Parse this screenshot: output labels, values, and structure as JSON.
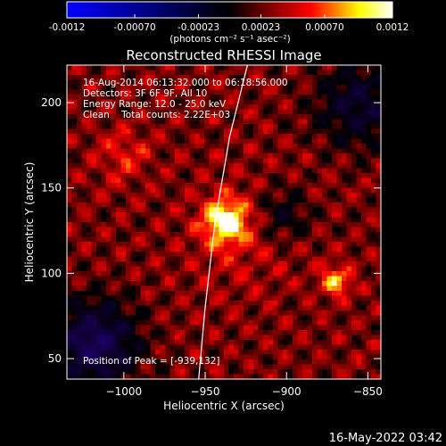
{
  "colorbar": {
    "ticks": [
      "-0.0012",
      "-0.00070",
      "-0.00023",
      "0.00023",
      "0.00070",
      "0.0012"
    ],
    "tick_values": [
      -0.0012,
      -0.0007,
      -0.00023,
      0.00023,
      0.0007,
      0.0012
    ],
    "range": [
      -0.0012,
      0.0012
    ],
    "unit_label": "(photons cm⁻² s⁻¹ asec⁻²)",
    "colors": [
      "#0000ff",
      "#000000",
      "#ff0000",
      "#ffff00",
      "#ffffff"
    ]
  },
  "chart_data": {
    "type": "heatmap",
    "title": "Reconstructed RHESSI Image",
    "xlabel": "Heliocentric X (arcsec)",
    "ylabel": "Heliocentric Y (arcsec)",
    "xlim": [
      -1035,
      -842
    ],
    "ylim": [
      38,
      222
    ],
    "x_ticks": [
      -1000,
      -950,
      -900,
      -850
    ],
    "x_tick_labels": [
      "−1000",
      "−950",
      "−900",
      "−850"
    ],
    "y_ticks": [
      50,
      100,
      150,
      200
    ],
    "y_tick_labels": [
      "50",
      "100",
      "150",
      "200"
    ],
    "annotations": {
      "time_range": "16-Aug-2014 06:13:32.000 to 06:18:56.000",
      "detectors": "Detectors: 3F 6F 9F, All 10",
      "energy": "Energy Range: 12.0 - 25.0 keV",
      "clean": "Clean    Total counts: 2.22E+03",
      "peak": "Position of Peak = [-939,132]"
    },
    "peak_position": [
      -939,
      132
    ],
    "limb_curve": [
      [
        -924,
        222
      ],
      [
        -935,
        180
      ],
      [
        -944,
        130
      ],
      [
        -950,
        80
      ],
      [
        -954,
        38
      ]
    ]
  },
  "footer_timestamp": "16-May-2022 03:42"
}
